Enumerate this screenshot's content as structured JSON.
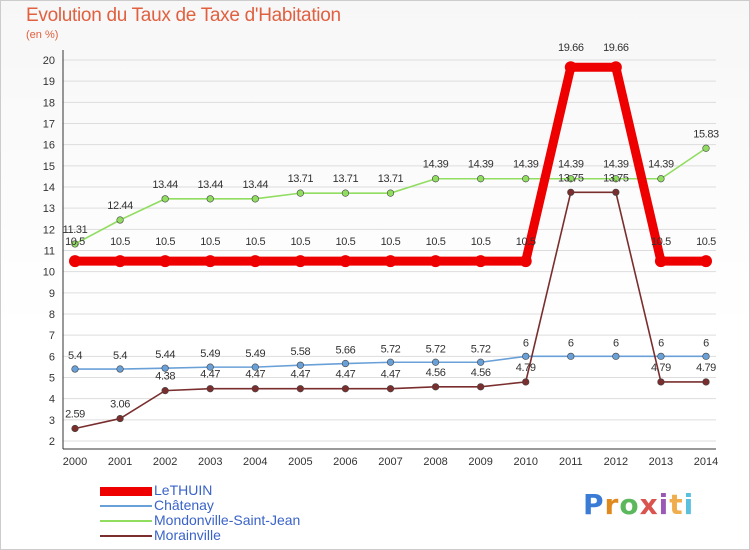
{
  "title": "Evolution du Taux de Taxe d'Habitation",
  "subtitle": "(en %)",
  "logo": "Proxiti",
  "colors": {
    "title": "#e06040",
    "legend_text": "#3a63c8",
    "grid": "#dddddd",
    "axis": "#333333"
  },
  "chart_data": {
    "type": "line",
    "title": "Evolution du Taux de Taxe d'Habitation",
    "subtitle": "(en %)",
    "xlabel": "",
    "ylabel": "",
    "ylim": [
      2,
      20
    ],
    "yticks": [
      2,
      3,
      4,
      5,
      6,
      7,
      8,
      9,
      10,
      11,
      12,
      13,
      14,
      15,
      16,
      17,
      18,
      19,
      20
    ],
    "grid": "horizontal",
    "legend_position": "bottom-left",
    "categories": [
      "2000",
      "2001",
      "2002",
      "2003",
      "2004",
      "2005",
      "2006",
      "2007",
      "2008",
      "2009",
      "2010",
      "2011",
      "2012",
      "2013",
      "2014"
    ],
    "series": [
      {
        "name": "LeTHUIN",
        "color": "#ee0000",
        "values": [
          10.5,
          10.5,
          10.5,
          10.5,
          10.5,
          10.5,
          10.5,
          10.5,
          10.5,
          10.5,
          10.5,
          19.66,
          19.66,
          10.5,
          10.5
        ],
        "labels": [
          "10.5",
          "10.5",
          "10.5",
          "10.5",
          "10.5",
          "10.5",
          "10.5",
          "10.5",
          "10.5",
          "10.5",
          "10.5",
          "19.66",
          "19.66",
          "10.5",
          "10.5"
        ]
      },
      {
        "name": "Châtenay",
        "color": "#6aa0d8",
        "values": [
          5.4,
          5.4,
          5.44,
          5.49,
          5.49,
          5.58,
          5.66,
          5.72,
          5.72,
          5.72,
          6,
          6,
          6,
          6,
          6
        ],
        "labels": [
          "5.4",
          "5.4",
          "5.44",
          "5.49",
          "5.49",
          "5.58",
          "5.66",
          "5.72",
          "5.72",
          "5.72",
          "6",
          "6",
          "6",
          "6",
          "6"
        ]
      },
      {
        "name": "Mondonville-Saint-Jean",
        "color": "#90dd60",
        "values": [
          11.31,
          12.44,
          13.44,
          13.44,
          13.44,
          13.71,
          13.71,
          13.71,
          14.39,
          14.39,
          14.39,
          14.39,
          14.39,
          14.39,
          15.83
        ],
        "labels": [
          "11.31",
          "12.44",
          "13.44",
          "13.44",
          "13.44",
          "13.71",
          "13.71",
          "13.71",
          "14.39",
          "14.39",
          "14.39",
          "14.39",
          "14.39",
          "14.39",
          "15.83"
        ]
      },
      {
        "name": "Morainville",
        "color": "#7a2e2e",
        "values": [
          2.59,
          3.06,
          4.38,
          4.47,
          4.47,
          4.47,
          4.47,
          4.47,
          4.56,
          4.56,
          4.79,
          13.75,
          13.75,
          4.79,
          4.79
        ],
        "labels": [
          "2.59",
          "3.06",
          "4.38",
          "4.47",
          "4.47",
          "4.47",
          "4.47",
          "4.47",
          "4.56",
          "4.56",
          "4.79",
          "13.75",
          "13.75",
          "4.79",
          "4.79"
        ]
      }
    ]
  }
}
